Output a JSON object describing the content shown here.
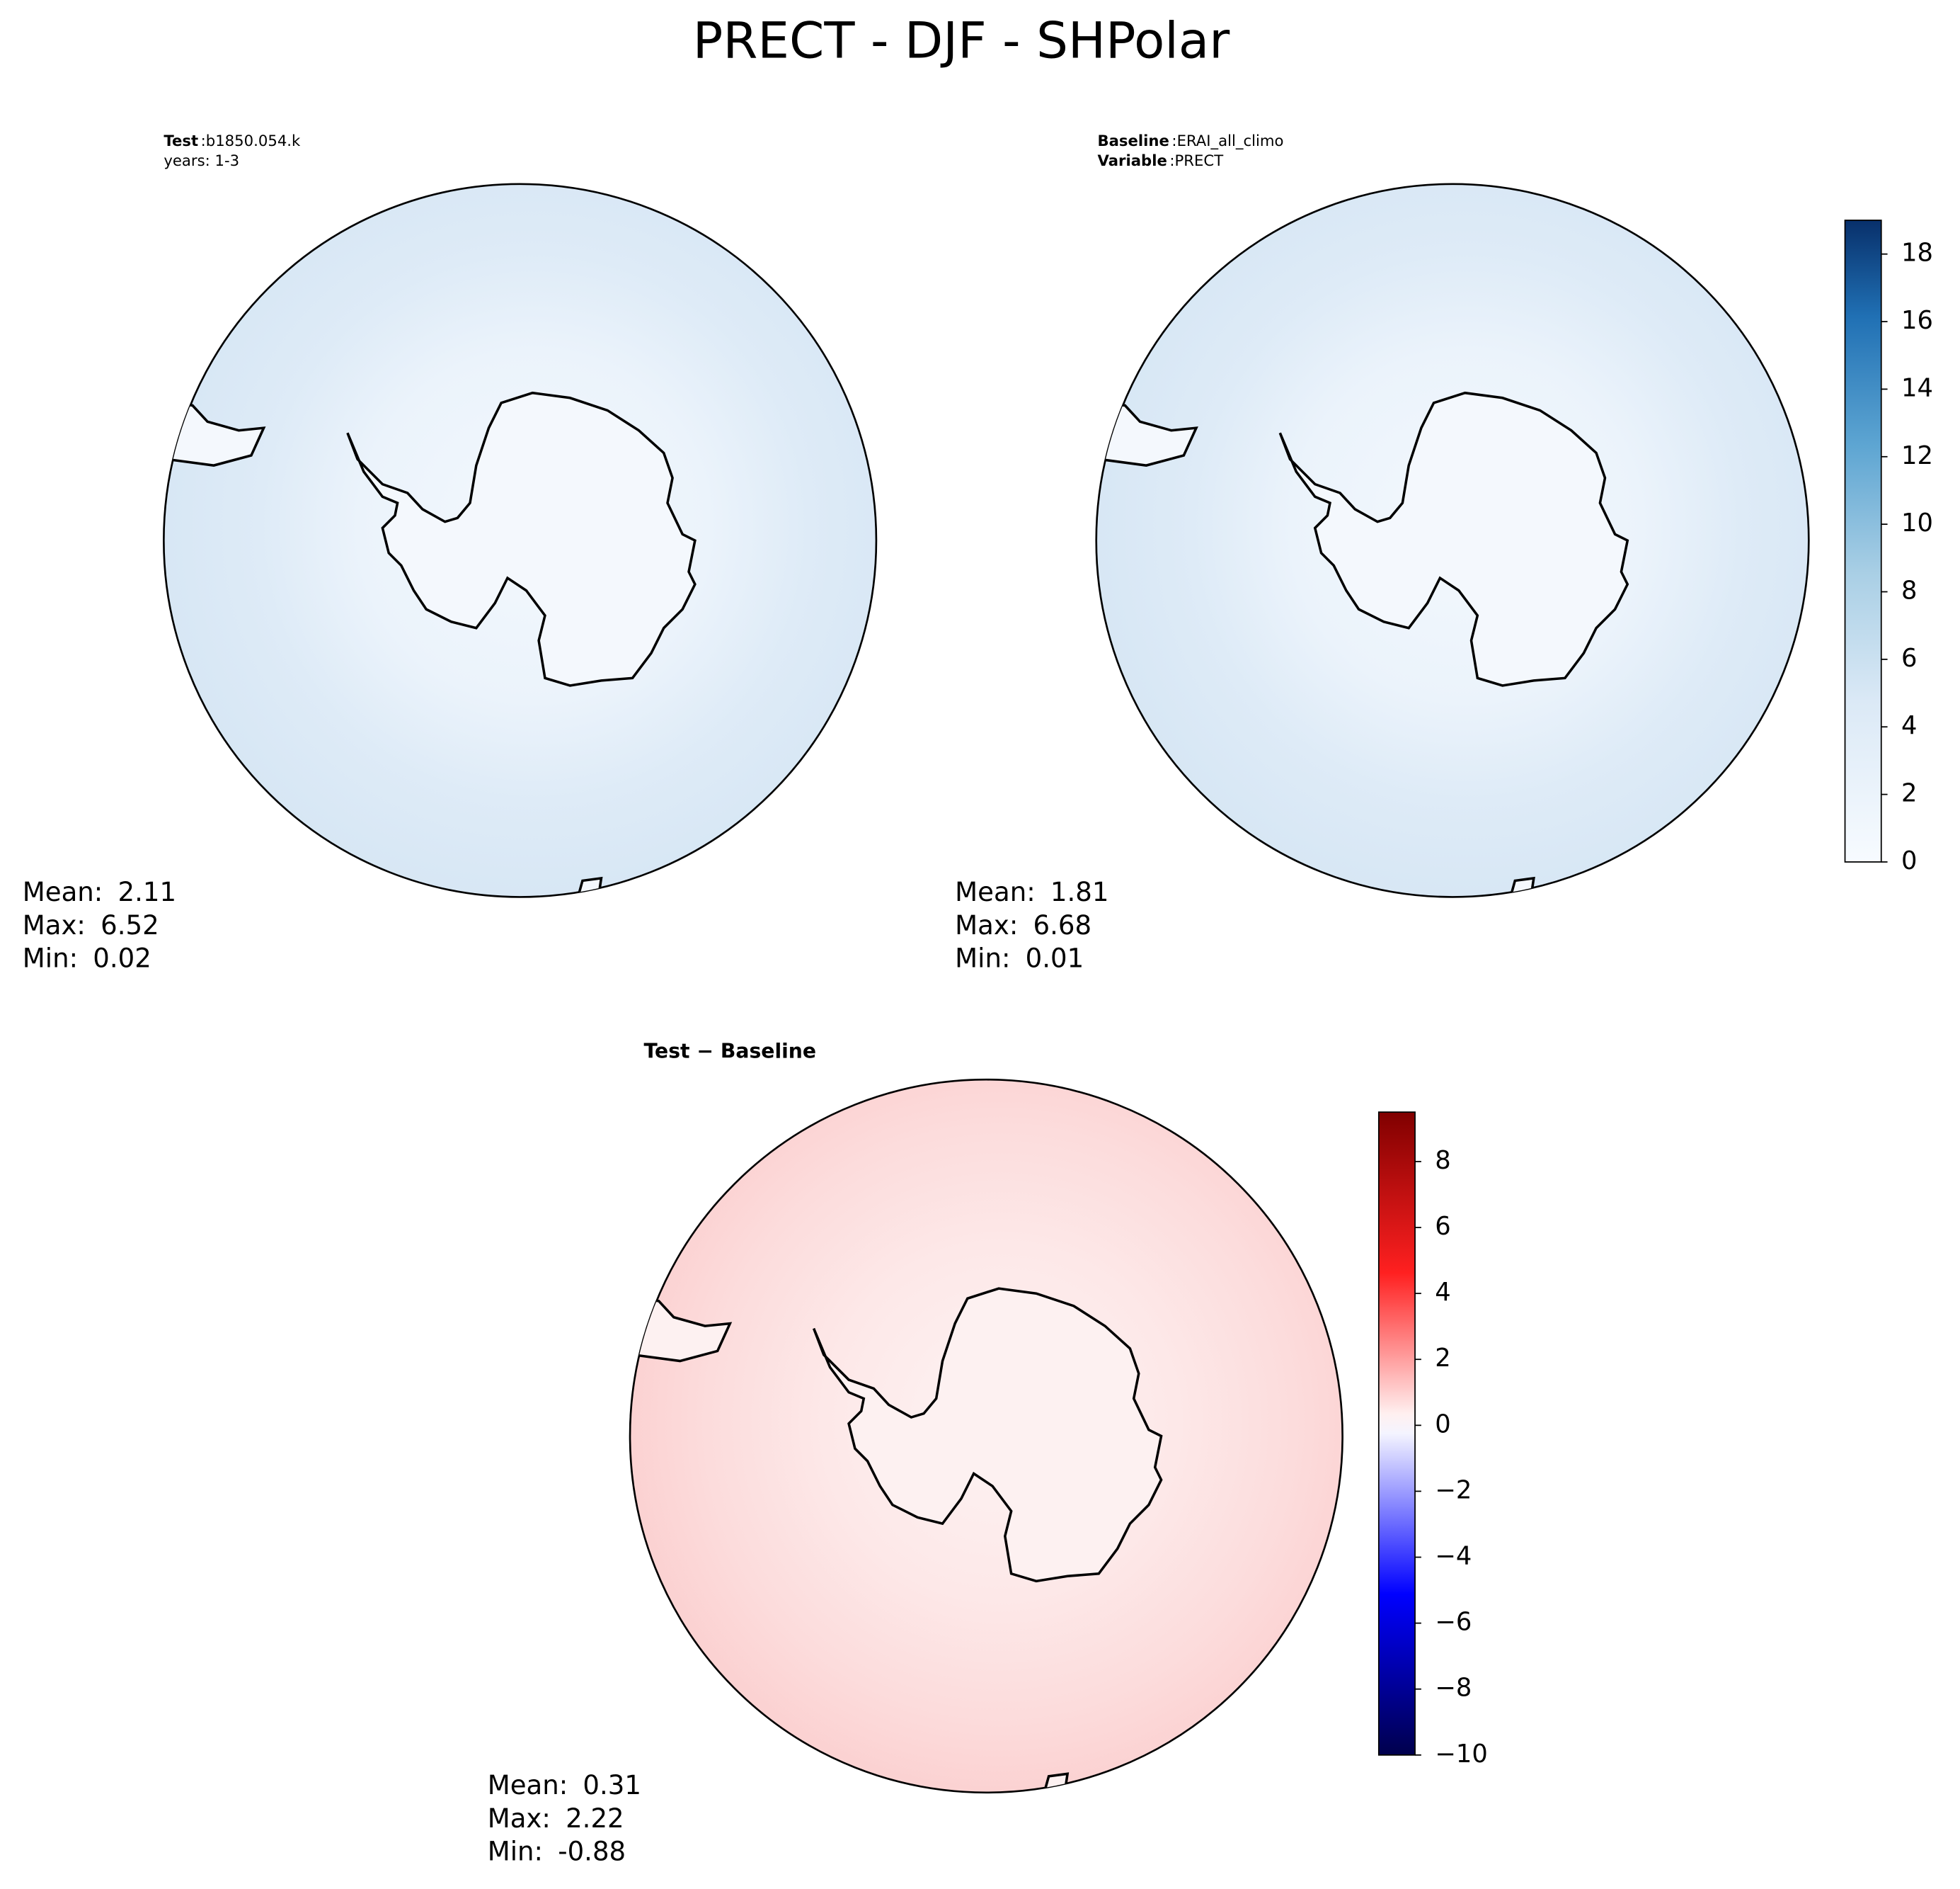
{
  "title": "PRECT - DJF - SHPolar",
  "panels": [
    {
      "header": [
        {
          "key": "Test",
          "sep": ":",
          "text": "b1850.054.k"
        },
        {
          "text": "years: 1-3"
        }
      ],
      "stats": [
        {
          "label": "Mean:",
          "value": 2.11
        },
        {
          "label": "Max:",
          "value": 6.52
        },
        {
          "label": "Min:",
          "value": 0.02
        }
      ]
    },
    {
      "header": [
        {
          "key": "Baseline",
          "sep": ":",
          "text": "ERAI_all_climo"
        },
        {
          "key": "Variable",
          "sep": ":",
          "text": "PRECT"
        }
      ],
      "stats": [
        {
          "label": "Mean:",
          "value": 1.81
        },
        {
          "label": "Max:",
          "value": 6.68
        },
        {
          "label": "Min:",
          "value": 0.01
        }
      ]
    },
    {
      "title": "Test − Baseline",
      "stats": [
        {
          "label": "Mean:",
          "value": 0.31
        },
        {
          "label": "Max:",
          "value": 2.22
        },
        {
          "label": "Min:",
          "value": -0.88
        }
      ]
    }
  ],
  "colorbars": [
    {
      "lim": [
        0,
        19
      ],
      "ticks": [
        0,
        2,
        4,
        6,
        8,
        10,
        12,
        14,
        16,
        18
      ]
    },
    {
      "lim": [
        -10,
        9.5
      ],
      "ticks": [
        {
          "value": -10,
          "label": "−10"
        },
        {
          "value": -8,
          "label": "−8"
        },
        {
          "value": -6,
          "label": "−6"
        },
        {
          "value": -4,
          "label": "−4"
        },
        {
          "value": -2,
          "label": "−2"
        },
        0,
        2,
        4,
        6,
        8
      ]
    }
  ]
}
